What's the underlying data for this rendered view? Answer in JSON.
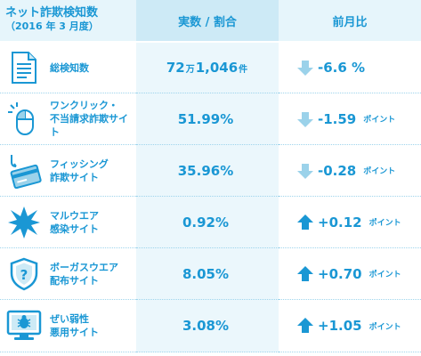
{
  "header": {
    "title": "ネット詐欺検知数",
    "subtitle": "（2016 年 3 月度）",
    "col_value": "実数 / 割合",
    "col_change": "前月比"
  },
  "colors": {
    "accent": "#1a97d4",
    "down_arrow": "#9bd2ea",
    "up_arrow": "#1a97d4",
    "value_bg": "#ebf7fc"
  },
  "rows": [
    {
      "icon": "document-icon",
      "label_1": "総検知数",
      "label_2": "",
      "value_main": "72",
      "value_small_1": "万",
      "value_mid": "1,046",
      "value_small_2": "件",
      "direction": "down",
      "change": "-6.6 %",
      "unit": ""
    },
    {
      "icon": "mouse-click-icon",
      "label_1": "ワンクリック・",
      "label_2": "不当請求詐欺サイト",
      "value_main": "51.99%",
      "value_small_1": "",
      "value_mid": "",
      "value_small_2": "",
      "direction": "down",
      "change": "-1.59",
      "unit": "ポイント"
    },
    {
      "icon": "fishing-card-icon",
      "label_1": "フィッシング",
      "label_2": "詐欺サイト",
      "value_main": "35.96%",
      "value_small_1": "",
      "value_mid": "",
      "value_small_2": "",
      "direction": "down",
      "change": "-0.28",
      "unit": "ポイント"
    },
    {
      "icon": "malware-burst-icon",
      "label_1": "マルウエア",
      "label_2": "感染サイト",
      "value_main": "0.92%",
      "value_small_1": "",
      "value_mid": "",
      "value_small_2": "",
      "direction": "up",
      "change": "+0.12",
      "unit": "ポイント"
    },
    {
      "icon": "shield-question-icon",
      "label_1": "ボーガスウエア",
      "label_2": "配布サイト",
      "value_main": "8.05%",
      "value_small_1": "",
      "value_mid": "",
      "value_small_2": "",
      "direction": "up",
      "change": "+0.70",
      "unit": "ポイント"
    },
    {
      "icon": "monitor-bug-icon",
      "label_1": "ぜい弱性",
      "label_2": "悪用サイト",
      "value_main": "3.08%",
      "value_small_1": "",
      "value_mid": "",
      "value_small_2": "",
      "direction": "up",
      "change": "+1.05",
      "unit": "ポイント"
    }
  ]
}
